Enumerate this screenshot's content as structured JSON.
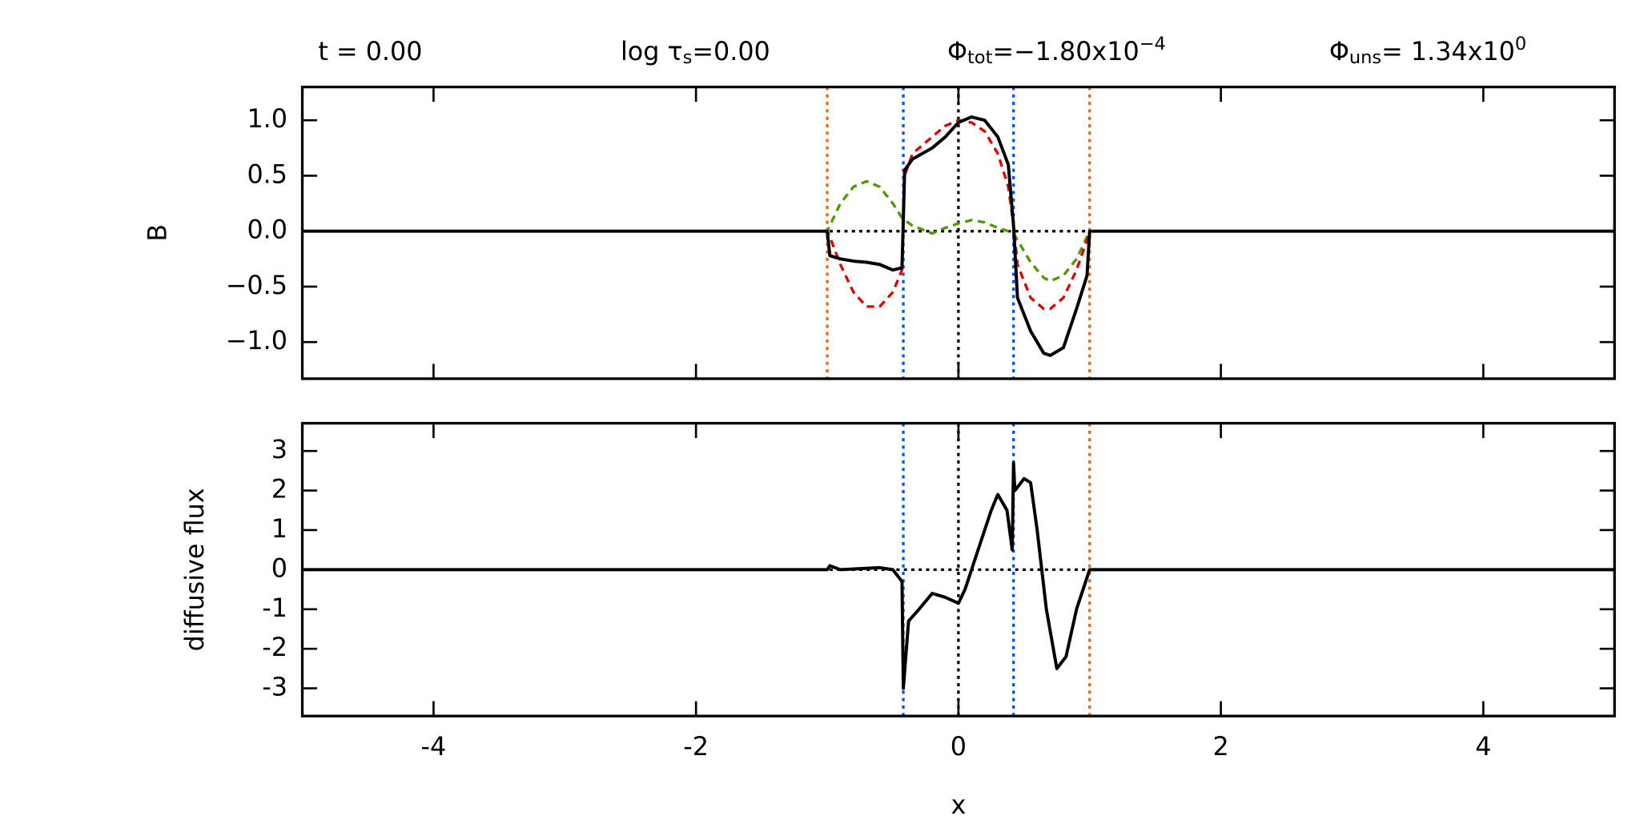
{
  "chart_data": [
    {
      "type": "line",
      "annotations": [
        {
          "parts": [
            {
              "text": "t = 0.00"
            }
          ]
        },
        {
          "parts": [
            {
              "text": "log τ"
            },
            {
              "text": "s",
              "shift": "sub"
            },
            {
              "text": "=0.00"
            }
          ]
        },
        {
          "parts": [
            {
              "text": "Φ"
            },
            {
              "text": "tot",
              "shift": "sub"
            },
            {
              "text": "=−1.80x10"
            },
            {
              "text": "−4",
              "shift": "super"
            }
          ]
        },
        {
          "parts": [
            {
              "text": "Φ"
            },
            {
              "text": "uns",
              "shift": "sub"
            },
            {
              "text": "= 1.34x10"
            },
            {
              "text": "0",
              "shift": "super"
            }
          ]
        }
      ],
      "ylabel": "B",
      "xlim": [
        -5,
        5
      ],
      "ylim": [
        -1.33,
        1.3
      ],
      "yticks": [
        {
          "value": -1.0,
          "label": "−1.0"
        },
        {
          "value": -0.5,
          "label": "−0.5"
        },
        {
          "value": 0.0,
          "label": "0.0"
        },
        {
          "value": 0.5,
          "label": "0.5"
        },
        {
          "value": 1.0,
          "label": "1.0"
        }
      ],
      "x": [
        -5,
        -1,
        -0.98,
        -0.9,
        -0.8,
        -0.7,
        -0.6,
        -0.5,
        -0.43,
        -0.41,
        -0.35,
        -0.2,
        -0.1,
        0,
        0.1,
        0.2,
        0.3,
        0.38,
        0.42,
        0.45,
        0.55,
        0.65,
        0.7,
        0.8,
        0.9,
        0.98,
        1,
        5
      ],
      "hlines": [
        {
          "y": 0,
          "color": "#000000",
          "style": "dotted"
        }
      ],
      "series": [
        {
          "color": "#4c9a00",
          "style": "dashed",
          "values": [
            0,
            0,
            0.05,
            0.25,
            0.4,
            0.45,
            0.4,
            0.25,
            0.12,
            0.1,
            0.05,
            -0.02,
            0.03,
            0.07,
            0.1,
            0.08,
            0.03,
            0,
            -0.02,
            -0.08,
            -0.28,
            -0.42,
            -0.45,
            -0.4,
            -0.25,
            -0.05,
            0,
            0
          ]
        },
        {
          "color": "#e00000",
          "style": "dashed",
          "values": [
            0,
            0,
            -0.05,
            -0.3,
            -0.55,
            -0.68,
            -0.68,
            -0.55,
            -0.35,
            0.5,
            0.7,
            0.85,
            0.95,
            1.0,
            0.98,
            0.9,
            0.7,
            0.4,
            0.05,
            -0.3,
            -0.6,
            -0.7,
            -0.7,
            -0.6,
            -0.35,
            -0.08,
            0,
            0
          ]
        },
        {
          "color": "#000000",
          "style": "solid",
          "values": [
            0,
            0,
            -0.22,
            -0.25,
            -0.27,
            -0.28,
            -0.3,
            -0.35,
            -0.33,
            0.55,
            0.65,
            0.75,
            0.85,
            0.98,
            1.03,
            1.0,
            0.85,
            0.6,
            0.05,
            -0.6,
            -0.9,
            -1.1,
            -1.12,
            -1.05,
            -0.7,
            -0.4,
            0,
            0
          ]
        }
      ],
      "vlines": [
        {
          "x": -1,
          "color": "#ff6000",
          "style": "dotted"
        },
        {
          "x": -0.42,
          "color": "#0050ff",
          "style": "dotted"
        },
        {
          "x": 0,
          "color": "#000000",
          "style": "dotted"
        },
        {
          "x": 0.42,
          "color": "#0050ff",
          "style": "dotted"
        },
        {
          "x": 1,
          "color": "#ff6000",
          "style": "dotted"
        }
      ]
    },
    {
      "type": "line",
      "xlabel": "x",
      "ylabel": "diffusive flux",
      "xlim": [
        -5,
        5
      ],
      "ylim": [
        -3.7,
        3.7
      ],
      "xticks": [
        -4,
        -2,
        0,
        2,
        4
      ],
      "yticks": [
        -3,
        -2,
        -1,
        0,
        1,
        2,
        3
      ],
      "x": [
        -5,
        -1.0,
        -0.98,
        -0.9,
        -0.6,
        -0.5,
        -0.43,
        -0.42,
        -0.38,
        -0.3,
        -0.2,
        -0.1,
        0,
        0.05,
        0.15,
        0.25,
        0.3,
        0.37,
        0.41,
        0.42,
        0.43,
        0.5,
        0.55,
        0.6,
        0.67,
        0.75,
        0.82,
        0.9,
        0.99,
        1,
        5
      ],
      "hlines": [
        {
          "y": 0,
          "color": "#000000",
          "style": "dotted"
        }
      ],
      "series": [
        {
          "color": "#000000",
          "style": "solid",
          "values": [
            0,
            0,
            0.1,
            0,
            0.05,
            0,
            -0.3,
            -3.0,
            -1.3,
            -1.0,
            -0.6,
            -0.7,
            -0.85,
            -0.5,
            0.5,
            1.5,
            1.9,
            1.5,
            0.5,
            2.7,
            2.0,
            2.3,
            2.2,
            1.0,
            -1.0,
            -2.5,
            -2.2,
            -1.0,
            -0.1,
            0,
            0
          ]
        }
      ],
      "vlines": [
        {
          "x": -0.42,
          "color": "#0050ff",
          "style": "dotted"
        },
        {
          "x": 0,
          "color": "#000000",
          "style": "dotted"
        },
        {
          "x": 0.42,
          "color": "#0050ff",
          "style": "dotted"
        },
        {
          "x": 1,
          "color": "#ff6000",
          "style": "dotted"
        }
      ]
    }
  ]
}
